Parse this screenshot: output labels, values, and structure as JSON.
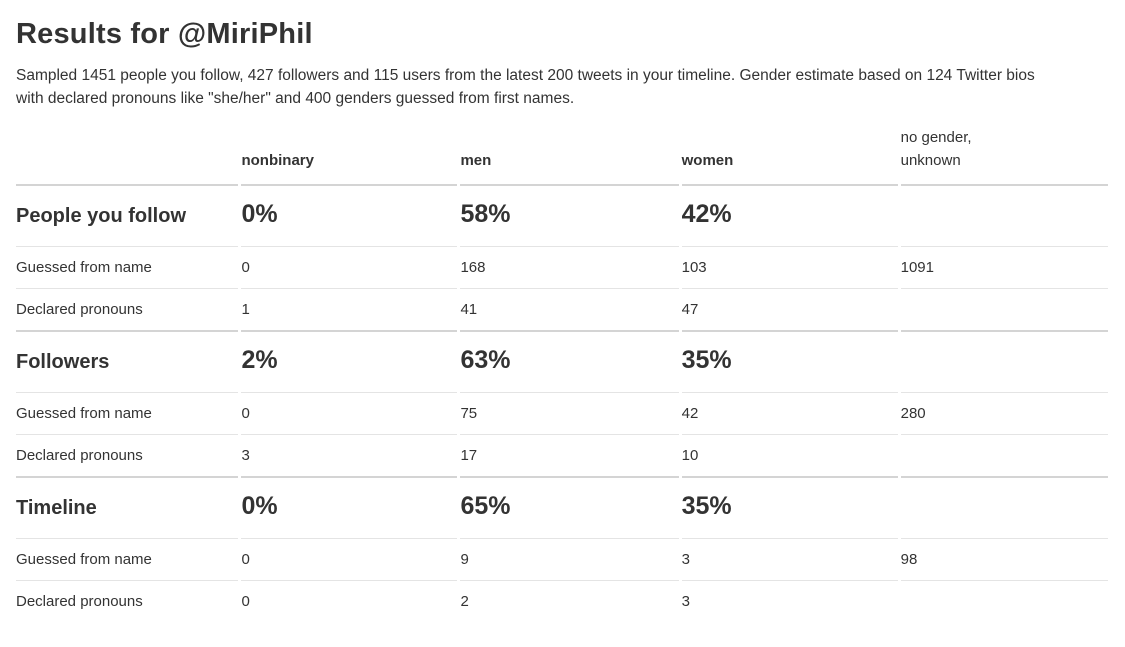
{
  "page": {
    "title": "Results for @MiriPhil",
    "description": "Sampled 1451 people you follow, 427 followers and 115 users from the latest 200 tweets in your timeline. Gender estimate based on 124 Twitter bios\nwith declared pronouns like \"she/her\" and 400 genders guessed from first names."
  },
  "colors": {
    "text": "#333333",
    "background": "#ffffff",
    "border_heavy": "#d4d4d4",
    "border_light": "#e4e4e4"
  },
  "table": {
    "header": [
      "",
      "nonbinary",
      "men",
      "women",
      "no gender,\nunknown"
    ],
    "rows": [
      {
        "type": "section",
        "cells": [
          "People you follow",
          "0%",
          "58%",
          "42%",
          ""
        ]
      },
      {
        "type": "detail",
        "cells": [
          "Guessed from name",
          "0",
          "168",
          "103",
          "1091"
        ]
      },
      {
        "type": "detail",
        "cells": [
          "Declared pronouns",
          "1",
          "41",
          "47",
          ""
        ]
      },
      {
        "type": "section",
        "cells": [
          "Followers",
          "2%",
          "63%",
          "35%",
          ""
        ]
      },
      {
        "type": "detail",
        "cells": [
          "Guessed from name",
          "0",
          "75",
          "42",
          "280"
        ]
      },
      {
        "type": "detail",
        "cells": [
          "Declared pronouns",
          "3",
          "17",
          "10",
          ""
        ]
      },
      {
        "type": "section",
        "cells": [
          "Timeline",
          "0%",
          "65%",
          "35%",
          ""
        ]
      },
      {
        "type": "detail",
        "cells": [
          "Guessed from name",
          "0",
          "9",
          "3",
          "98"
        ]
      },
      {
        "type": "detail",
        "cells": [
          "Declared pronouns",
          "0",
          "2",
          "3",
          ""
        ]
      }
    ]
  }
}
